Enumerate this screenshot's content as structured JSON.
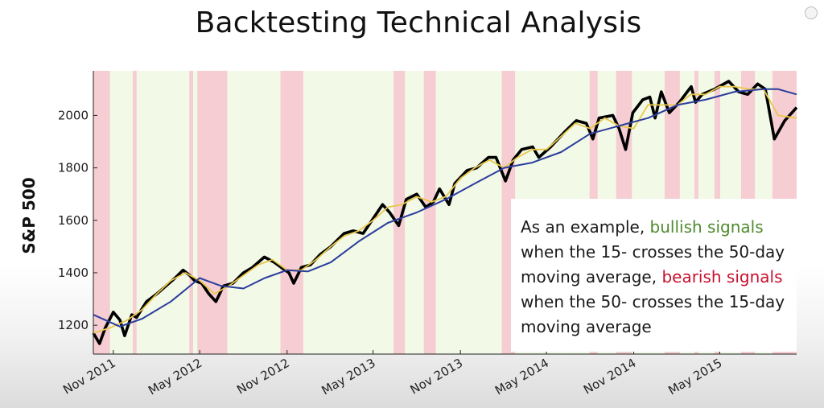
{
  "slide": {
    "title": "Backtesting Technical Analysis"
  },
  "annotation": {
    "t1": "As an example, ",
    "t2": "bullish signals",
    "t3": " when the 15- crosses the 50-day moving average, ",
    "t4": "bearish signals",
    "t5": " when the 50- crosses the 15-day moving average"
  },
  "colors": {
    "bullish_region": "#f2f9e6",
    "bearish_region": "#f6cdd2",
    "price": "#000000",
    "ma15": "#e8c84a",
    "ma50": "#2b3d9e",
    "bullish_text": "#4f8a2f",
    "bearish_text": "#c8102e"
  },
  "chart_data": {
    "type": "line",
    "title": "",
    "xlabel": "",
    "ylabel": "S&P 500",
    "x_ticks": [
      "Nov 2011",
      "May 2012",
      "Nov 2012",
      "May 2013",
      "Nov 2013",
      "May 2014",
      "Nov 2014",
      "May 2015"
    ],
    "y_ticks": [
      1200,
      1400,
      1600,
      1800,
      2000
    ],
    "xlim": [
      "2011-09-20",
      "2015-10-10"
    ],
    "ylim": [
      1090,
      2170
    ],
    "bearish_periods": [
      [
        "2011-09-20",
        "2011-10-25"
      ],
      [
        "2011-12-12",
        "2011-12-20"
      ],
      [
        "2012-04-09",
        "2012-04-17"
      ],
      [
        "2012-04-26",
        "2012-06-28"
      ],
      [
        "2012-10-18",
        "2012-12-05"
      ],
      [
        "2013-06-13",
        "2013-07-07"
      ],
      [
        "2013-08-16",
        "2013-09-10"
      ],
      [
        "2014-01-27",
        "2014-02-24"
      ],
      [
        "2014-07-31",
        "2014-08-17"
      ],
      [
        "2014-09-25",
        "2014-10-28"
      ],
      [
        "2015-01-05",
        "2015-02-06"
      ],
      [
        "2015-03-09",
        "2015-03-17"
      ],
      [
        "2015-04-20",
        "2015-05-02"
      ],
      [
        "2015-06-15",
        "2015-07-14"
      ],
      [
        "2015-08-20",
        "2015-10-10"
      ]
    ],
    "series": [
      {
        "name": "",
        "style": "price",
        "x": [
          "2011-09-20",
          "2011-10-03",
          "2011-10-15",
          "2011-11-01",
          "2011-11-15",
          "2011-11-25",
          "2011-12-10",
          "2011-12-20",
          "2012-01-10",
          "2012-02-01",
          "2012-02-20",
          "2012-03-10",
          "2012-03-27",
          "2012-04-10",
          "2012-04-20",
          "2012-05-05",
          "2012-05-20",
          "2012-06-04",
          "2012-06-20",
          "2012-07-10",
          "2012-08-01",
          "2012-08-20",
          "2012-09-14",
          "2012-10-05",
          "2012-10-20",
          "2012-11-05",
          "2012-11-15",
          "2012-12-01",
          "2012-12-20",
          "2013-01-10",
          "2013-02-01",
          "2013-03-01",
          "2013-03-20",
          "2013-04-10",
          "2013-04-25",
          "2013-05-21",
          "2013-06-05",
          "2013-06-24",
          "2013-07-10",
          "2013-08-01",
          "2013-08-20",
          "2013-09-05",
          "2013-09-18",
          "2013-10-08",
          "2013-10-20",
          "2013-11-15",
          "2013-12-05",
          "2013-12-30",
          "2014-01-15",
          "2014-02-04",
          "2014-02-20",
          "2014-03-10",
          "2014-04-02",
          "2014-04-15",
          "2014-05-10",
          "2014-06-10",
          "2014-07-03",
          "2014-07-24",
          "2014-08-07",
          "2014-08-20",
          "2014-09-18",
          "2014-10-01",
          "2014-10-15",
          "2014-10-30",
          "2014-11-20",
          "2014-12-05",
          "2014-12-16",
          "2014-12-29",
          "2015-01-15",
          "2015-02-05",
          "2015-03-02",
          "2015-03-11",
          "2015-03-25",
          "2015-04-20",
          "2015-05-20",
          "2015-06-10",
          "2015-06-29",
          "2015-07-20",
          "2015-08-05",
          "2015-08-24",
          "2015-09-15",
          "2015-10-10"
        ],
        "values": [
          1170,
          1130,
          1190,
          1250,
          1220,
          1160,
          1240,
          1230,
          1290,
          1320,
          1350,
          1380,
          1410,
          1390,
          1370,
          1360,
          1320,
          1290,
          1350,
          1360,
          1400,
          1420,
          1460,
          1440,
          1420,
          1400,
          1360,
          1420,
          1430,
          1470,
          1500,
          1550,
          1560,
          1550,
          1590,
          1660,
          1630,
          1580,
          1680,
          1700,
          1650,
          1670,
          1720,
          1660,
          1740,
          1790,
          1800,
          1840,
          1840,
          1750,
          1830,
          1870,
          1880,
          1840,
          1880,
          1940,
          1980,
          1970,
          1910,
          1990,
          2000,
          1950,
          1870,
          2010,
          2060,
          2070,
          1990,
          2090,
          2010,
          2050,
          2110,
          2050,
          2080,
          2100,
          2130,
          2090,
          2080,
          2120,
          2100,
          1910,
          1980,
          2030
        ]
      },
      {
        "name": "",
        "style": "ma15",
        "x": [
          "2011-09-20",
          "2011-10-25",
          "2011-12-01",
          "2012-01-01",
          "2012-02-01",
          "2012-03-01",
          "2012-04-01",
          "2012-05-01",
          "2012-06-01",
          "2012-07-01",
          "2012-08-01",
          "2012-09-01",
          "2012-10-01",
          "2012-11-01",
          "2012-12-01",
          "2013-01-01",
          "2013-02-01",
          "2013-03-01",
          "2013-04-01",
          "2013-05-01",
          "2013-06-01",
          "2013-07-01",
          "2013-08-01",
          "2013-09-01",
          "2013-10-01",
          "2013-11-01",
          "2013-12-01",
          "2014-01-01",
          "2014-02-01",
          "2014-03-01",
          "2014-04-01",
          "2014-05-01",
          "2014-06-01",
          "2014-07-01",
          "2014-08-01",
          "2014-09-01",
          "2014-10-01",
          "2014-11-01",
          "2014-12-01",
          "2015-01-01",
          "2015-02-01",
          "2015-03-01",
          "2015-04-01",
          "2015-05-01",
          "2015-06-01",
          "2015-07-01",
          "2015-08-01",
          "2015-09-01",
          "2015-10-10"
        ],
        "values": [
          1170,
          1190,
          1220,
          1260,
          1320,
          1370,
          1400,
          1370,
          1320,
          1350,
          1390,
          1430,
          1450,
          1410,
          1410,
          1450,
          1500,
          1540,
          1560,
          1600,
          1650,
          1660,
          1690,
          1670,
          1690,
          1760,
          1800,
          1830,
          1800,
          1840,
          1870,
          1870,
          1920,
          1970,
          1950,
          1990,
          1960,
          1950,
          2040,
          2040,
          2040,
          2080,
          2080,
          2110,
          2110,
          2100,
          2100,
          2000,
          1990
        ]
      },
      {
        "name": "",
        "style": "ma50",
        "x": [
          "2011-09-20",
          "2011-11-15",
          "2012-01-01",
          "2012-03-01",
          "2012-05-01",
          "2012-06-15",
          "2012-08-01",
          "2012-09-15",
          "2012-11-01",
          "2012-12-15",
          "2013-02-01",
          "2013-04-01",
          "2013-06-01",
          "2013-08-01",
          "2013-10-01",
          "2013-12-01",
          "2014-02-01",
          "2014-04-01",
          "2014-06-01",
          "2014-08-01",
          "2014-10-01",
          "2014-12-01",
          "2015-02-01",
          "2015-04-01",
          "2015-06-01",
          "2015-08-01",
          "2015-09-01",
          "2015-10-10"
        ],
        "values": [
          1240,
          1195,
          1225,
          1290,
          1380,
          1350,
          1340,
          1380,
          1410,
          1405,
          1440,
          1520,
          1590,
          1630,
          1680,
          1740,
          1800,
          1820,
          1860,
          1930,
          1960,
          1990,
          2040,
          2060,
          2090,
          2100,
          2100,
          2080
        ]
      }
    ]
  }
}
